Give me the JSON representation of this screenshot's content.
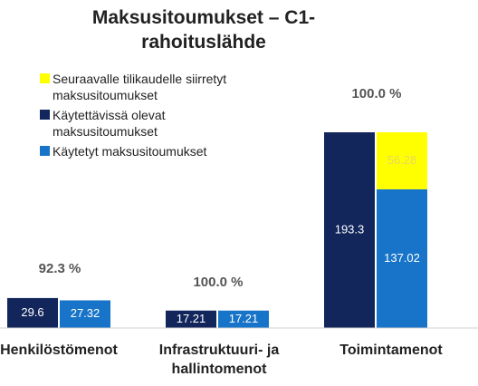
{
  "chart_data": {
    "type": "bar",
    "title": "Maksusitoumukset – C1-rahoituslähde",
    "categories": [
      "Henkilöstömenot",
      "Infrastruktuuri- ja hallintomenot",
      "Toimintamenot"
    ],
    "series": [
      {
        "name": "Seuraavalle tilikaudelle siirretyt maksusitoumukset",
        "color": "#ffff00",
        "values": [
          null,
          null,
          56.28
        ]
      },
      {
        "name": "Käytettävissä olevat maksusitoumukset",
        "color": "#13265c",
        "values": [
          29.6,
          17.21,
          193.3
        ]
      },
      {
        "name": "Käytetyt maksusitoumukset",
        "color": "#1874c8",
        "values": [
          27.32,
          17.21,
          137.02
        ]
      }
    ],
    "annotations": [
      "92.3 %",
      "100.0 %",
      "100.0 %"
    ]
  }
}
